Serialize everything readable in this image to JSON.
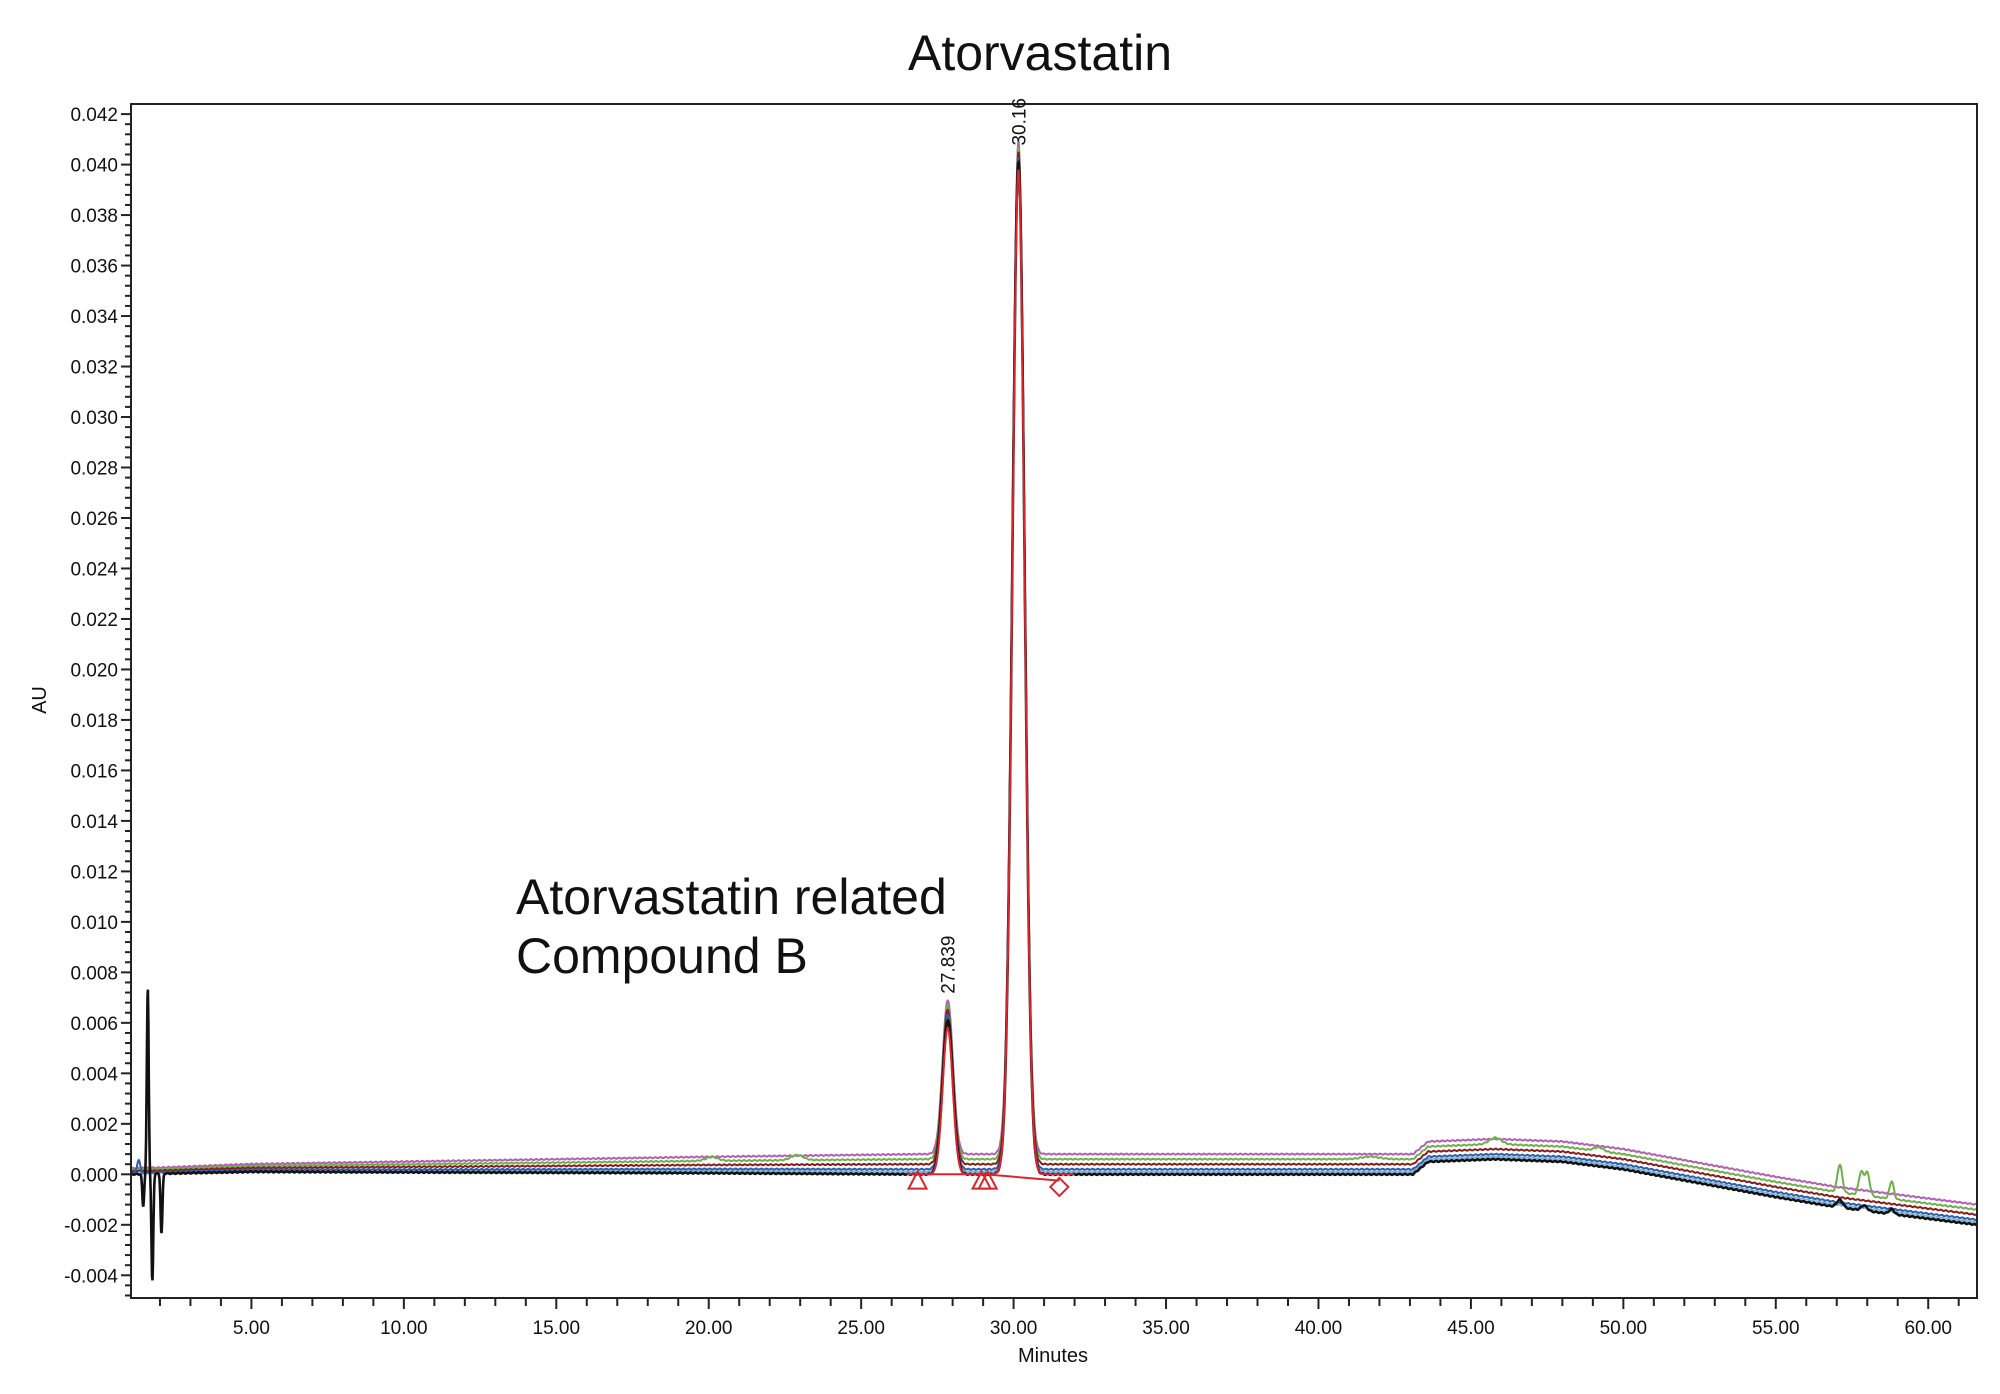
{
  "chart_data": {
    "type": "line",
    "title": "Atorvastatin",
    "xlabel": "Minutes",
    "ylabel": "AU",
    "xlim": [
      1.05,
      61.6
    ],
    "ylim": [
      -0.0049,
      0.0424
    ],
    "x_ticks": [
      5,
      10,
      15,
      20,
      25,
      30,
      35,
      40,
      45,
      50,
      55,
      60
    ],
    "x_tick_labels": [
      "5.00",
      "10.00",
      "15.00",
      "20.00",
      "25.00",
      "30.00",
      "35.00",
      "40.00",
      "45.00",
      "50.00",
      "55.00",
      "60.00"
    ],
    "y_ticks": [
      -0.004,
      -0.002,
      0,
      0.002,
      0.004,
      0.006,
      0.008,
      0.01,
      0.012,
      0.014,
      0.016,
      0.018,
      0.02,
      0.022,
      0.024,
      0.026,
      0.028,
      0.03,
      0.032,
      0.034,
      0.036,
      0.038,
      0.04,
      0.042
    ],
    "y_tick_labels": [
      "-0.004",
      "-0.002",
      "0.000",
      "0.002",
      "0.004",
      "0.006",
      "0.008",
      "0.010",
      "0.012",
      "0.014",
      "0.016",
      "0.018",
      "0.020",
      "0.022",
      "0.024",
      "0.026",
      "0.028",
      "0.030",
      "0.032",
      "0.034",
      "0.036",
      "0.038",
      "0.040",
      "0.042"
    ],
    "grid": false,
    "annotation": [
      "Atorvastatin related",
      "Compound B"
    ],
    "peak_labels": [
      {
        "text": "27.839",
        "x": 27.839,
        "y": 0.0066
      },
      {
        "text": "30.16",
        "x": 30.16,
        "y": 0.0402
      }
    ],
    "baseline_drift": [
      [
        1,
        0
      ],
      [
        5,
        0.0001
      ],
      [
        20,
        5e-05
      ],
      [
        27,
        0
      ],
      [
        33,
        0.0
      ],
      [
        43.1,
        0.0
      ],
      [
        43.6,
        0.0005
      ],
      [
        45.8,
        0.0006
      ],
      [
        48,
        0.0005
      ],
      [
        50,
        0.0002
      ],
      [
        55,
        -0.0009
      ],
      [
        57,
        -0.0013
      ],
      [
        61.6,
        -0.002
      ]
    ],
    "peaks": [
      {
        "rt": 27.839,
        "height": 0.0061,
        "sigma": 0.17
      },
      {
        "rt": 30.16,
        "height": 0.0401,
        "sigma": 0.2
      }
    ],
    "series": [
      {
        "name": "trace-1",
        "color": "#111111",
        "offset": 0.0,
        "extra": [
          [
            1.6,
            0.0074,
            0.03
          ],
          [
            1.75,
            -0.0043,
            0.03
          ],
          [
            1.45,
            -0.0013,
            0.03
          ],
          [
            2.05,
            -0.0024,
            0.03
          ],
          [
            57.1,
            0.0003,
            0.1
          ],
          [
            57.9,
            0.0002,
            0.1
          ],
          [
            58.8,
            0.0002,
            0.08
          ]
        ]
      },
      {
        "name": "trace-2",
        "color": "#7fb3dc",
        "offset": 0.0001,
        "extra": []
      },
      {
        "name": "trace-3",
        "color": "#2e5fa8",
        "offset": 0.0002,
        "extra": [
          [
            1.3,
            0.0005,
            0.05
          ]
        ]
      },
      {
        "name": "trace-4",
        "color": "#8b1a1a",
        "offset": 0.0004,
        "extra": []
      },
      {
        "name": "trace-5",
        "color": "#6db04b",
        "offset": 0.0006,
        "extra": [
          [
            20.1,
            0.00015,
            0.2
          ],
          [
            22.9,
            0.0002,
            0.2
          ],
          [
            41.7,
            0.0001,
            0.3
          ],
          [
            45.8,
            0.00025,
            0.2
          ],
          [
            49.2,
            0.00015,
            0.15
          ],
          [
            57.1,
            0.0011,
            0.08
          ],
          [
            57.8,
            0.0009,
            0.08
          ],
          [
            58,
            0.0009,
            0.08
          ],
          [
            58.8,
            0.0007,
            0.07
          ]
        ]
      },
      {
        "name": "trace-6",
        "color": "#b35fb3",
        "offset": 0.0008,
        "extra": []
      }
    ],
    "integration": {
      "color": "#d8262c",
      "markers": [
        {
          "type": "triangle",
          "x": 26.85,
          "y": -0.00025
        },
        {
          "type": "triangle",
          "x": 28.95,
          "y": -0.00025
        },
        {
          "type": "triangle",
          "x": 29.15,
          "y": -0.00025
        },
        {
          "type": "diamond",
          "x": 31.5,
          "y": -0.0005
        }
      ],
      "baseline": [
        [
          26.85,
          0.0
        ],
        [
          29.05,
          0.0
        ],
        [
          31.5,
          -0.00025
        ]
      ]
    }
  }
}
